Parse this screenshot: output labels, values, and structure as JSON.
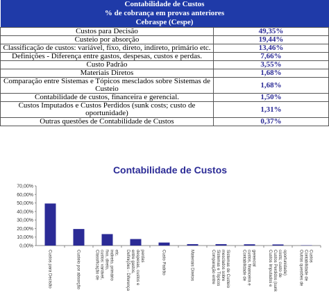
{
  "header": {
    "title": "Contabilidade de Custos",
    "subtitle": "% de cobrança em provas anteriores",
    "source": "Cebraspe (Cespe)"
  },
  "table": {
    "rows": [
      [
        "Custos para Decisão",
        "49,35%"
      ],
      [
        "Custeio por absorção",
        "19,44%"
      ],
      [
        "Classificação de custos: variável, fixo, direto, indireto, primário etc.",
        "13,46%"
      ],
      [
        "Definições - Diferença entre gastos, despesas, custos e perdas.",
        "7,66%"
      ],
      [
        "Custo Padrão",
        "3,55%"
      ],
      [
        "Materiais Diretos",
        "1,68%"
      ],
      [
        "Comparação entre Sistemas e Tópicos mesclados sobre Sistemas de Custeio",
        "1,68%"
      ],
      [
        "Contabilidade de custos, financeira e gerencial.",
        "1,50%"
      ],
      [
        "Custos Imputados e Custos Perdidos (sunk costs; custo de oportunidade)",
        "1,31%"
      ],
      [
        "Outras questões de Contabilidade de Custos",
        "0,37%"
      ]
    ]
  },
  "chart_data": {
    "type": "bar",
    "title": "Contabilidade de Custos",
    "categories": [
      "Custos para Decisão",
      "Custeio por absorção",
      "Classificação de custos: variável, fixo, direto, indireto, primário etc.",
      "Definições - Diferença entre gastos, despesas, custos e perdas",
      "Custo Padrão",
      "Materiais Diretos",
      "Comparação entre Sistemas e Tópicos mesclados sobre Sistemas de Custeio",
      "Contabilidade de custos, financeira e gerencial",
      "Custos Imputados e Custos Perdidos (sunk costs; custo de oportunidade)",
      "Outras questões de Contabilidade de Custos"
    ],
    "values": [
      49.35,
      19.44,
      13.46,
      7.66,
      3.55,
      1.68,
      1.68,
      1.5,
      1.31,
      0.37
    ],
    "color": "#2b2b96",
    "ylim": [
      0,
      70
    ],
    "yticks": [
      {
        "value": 0,
        "label": "0,00%"
      },
      {
        "value": 10,
        "label": "10,00%"
      },
      {
        "value": 20,
        "label": "20,00%"
      },
      {
        "value": 30,
        "label": "30,00%"
      },
      {
        "value": 40,
        "label": "40,00%"
      },
      {
        "value": 50,
        "label": "50,00%"
      },
      {
        "value": 60,
        "label": "60,00%"
      },
      {
        "value": 70,
        "label": "70,00%"
      }
    ]
  }
}
